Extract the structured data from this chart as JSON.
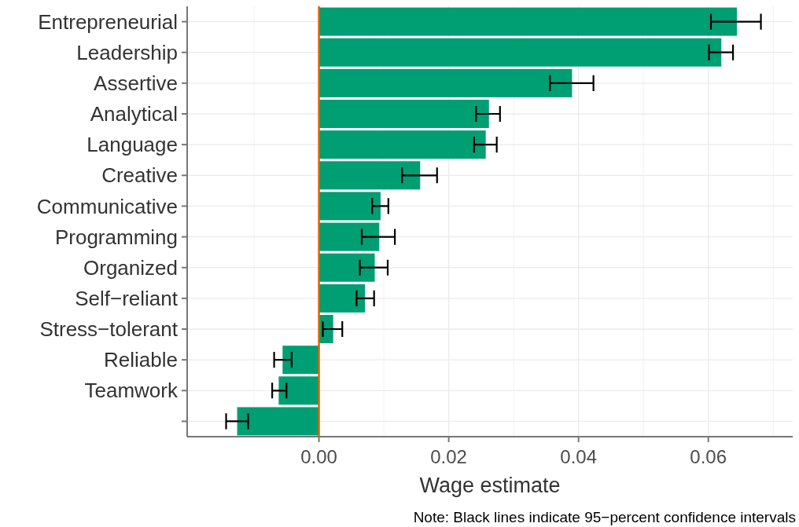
{
  "chart_data": {
    "type": "bar",
    "orientation": "horizontal",
    "xlabel": "Wage estimate",
    "categories": [
      "Entrepreneurial",
      "Leadership",
      "Assertive",
      "Analytical",
      "Language",
      "Creative",
      "Communicative",
      "Programming",
      "Organized",
      "Self−reliant",
      "Stress−tolerant",
      "Reliable",
      "Teamwork",
      null
    ],
    "values": [
      0.0644,
      0.062,
      0.039,
      0.0262,
      0.0257,
      0.0156,
      0.0095,
      0.0093,
      0.0086,
      0.0071,
      0.0022,
      -0.0056,
      -0.0062,
      -0.0126
    ],
    "errors": [
      [
        0.0604,
        0.0681
      ],
      [
        0.0601,
        0.0638
      ],
      [
        0.0356,
        0.0423
      ],
      [
        0.0242,
        0.0279
      ],
      [
        0.0239,
        0.0274
      ],
      [
        0.0128,
        0.0182
      ],
      [
        0.0082,
        0.0107
      ],
      [
        0.0066,
        0.0117
      ],
      [
        0.0063,
        0.0106
      ],
      [
        0.0058,
        0.0085
      ],
      [
        0.0006,
        0.0036
      ],
      [
        -0.0069,
        -0.0042
      ],
      [
        -0.0072,
        -0.005
      ],
      [
        -0.0143,
        -0.0109
      ]
    ],
    "color": "#009e73",
    "xlim": [
      -0.0203,
      0.073
    ],
    "xticks": [
      {
        "value": 0,
        "label": "0.00"
      },
      {
        "value": 0.02,
        "label": "0.02"
      },
      {
        "value": 0.04,
        "label": "0.04"
      },
      {
        "value": 0.06,
        "label": "0.06"
      }
    ],
    "ref_lines": [
      {
        "axis": "x",
        "value": 0,
        "color": "#e66101"
      }
    ],
    "grid": true,
    "annotations": [
      "Note: Black lines indicate 95−percent confidence intervals"
    ]
  }
}
